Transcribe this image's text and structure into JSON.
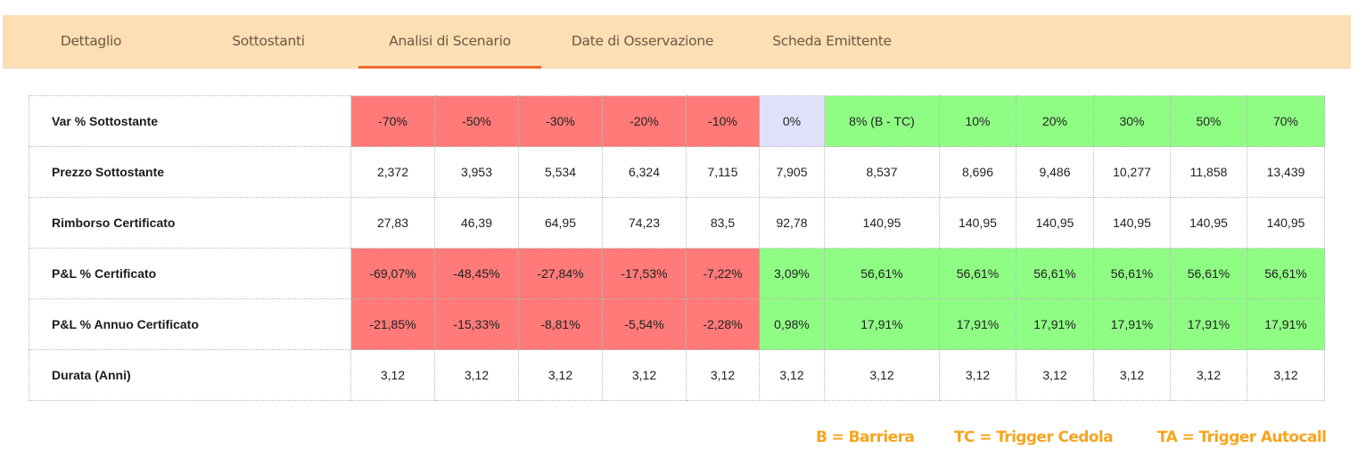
{
  "tabs": [
    {
      "label": "Dettaglio",
      "active": false
    },
    {
      "label": "Sottostanti",
      "active": false
    },
    {
      "label": "Analisi di Scenario",
      "active": true
    },
    {
      "label": "Date di Osservazione",
      "active": false
    },
    {
      "label": "Scheda Emittente",
      "active": false
    }
  ],
  "colors": {
    "tab_bar_bg": "#fddfb3",
    "tab_active_underline": "#f26a2e",
    "negative": "#ff7a79",
    "positive": "#8ffd84",
    "neutral": "#dfe1fb",
    "legend_text": "#f7a51d"
  },
  "scenario_table": {
    "rows": [
      {
        "label": "Var % Sottostante",
        "cells": [
          "-70%",
          "-50%",
          "-30%",
          "-20%",
          "-10%",
          "0%",
          "8% (B - TC)",
          "10%",
          "20%",
          "30%",
          "50%",
          "70%"
        ],
        "tones": [
          "red",
          "red",
          "red",
          "red",
          "red",
          "neutral",
          "green",
          "green",
          "green",
          "green",
          "green",
          "green"
        ]
      },
      {
        "label": "Prezzo Sottostante",
        "cells": [
          "2,372",
          "3,953",
          "5,534",
          "6,324",
          "7,115",
          "7,905",
          "8,537",
          "8,696",
          "9,486",
          "10,277",
          "11,858",
          "13,439"
        ],
        "tones": [
          "white",
          "white",
          "white",
          "white",
          "white",
          "white",
          "white",
          "white",
          "white",
          "white",
          "white",
          "white"
        ]
      },
      {
        "label": "Rimborso Certificato",
        "cells": [
          "27,83",
          "46,39",
          "64,95",
          "74,23",
          "83,5",
          "92,78",
          "140,95",
          "140,95",
          "140,95",
          "140,95",
          "140,95",
          "140,95"
        ],
        "tones": [
          "white",
          "white",
          "white",
          "white",
          "white",
          "white",
          "white",
          "white",
          "white",
          "white",
          "white",
          "white"
        ]
      },
      {
        "label": "P&L % Certificato",
        "cells": [
          "-69,07%",
          "-48,45%",
          "-27,84%",
          "-17,53%",
          "-7,22%",
          "3,09%",
          "56,61%",
          "56,61%",
          "56,61%",
          "56,61%",
          "56,61%",
          "56,61%"
        ],
        "tones": [
          "red",
          "red",
          "red",
          "red",
          "red",
          "green",
          "green",
          "green",
          "green",
          "green",
          "green",
          "green"
        ]
      },
      {
        "label": "P&L % Annuo Certificato",
        "cells": [
          "-21,85%",
          "-15,33%",
          "-8,81%",
          "-5,54%",
          "-2,28%",
          "0,98%",
          "17,91%",
          "17,91%",
          "17,91%",
          "17,91%",
          "17,91%",
          "17,91%"
        ],
        "tones": [
          "red",
          "red",
          "red",
          "red",
          "red",
          "green",
          "green",
          "green",
          "green",
          "green",
          "green",
          "green"
        ]
      },
      {
        "label": "Durata (Anni)",
        "cells": [
          "3,12",
          "3,12",
          "3,12",
          "3,12",
          "3,12",
          "3,12",
          "3,12",
          "3,12",
          "3,12",
          "3,12",
          "3,12",
          "3,12"
        ],
        "tones": [
          "white",
          "white",
          "white",
          "white",
          "white",
          "white",
          "white",
          "white",
          "white",
          "white",
          "white",
          "white"
        ]
      }
    ]
  },
  "legend": [
    "B = Barriera",
    "TC = Trigger Cedola",
    "TA = Trigger Autocall"
  ]
}
